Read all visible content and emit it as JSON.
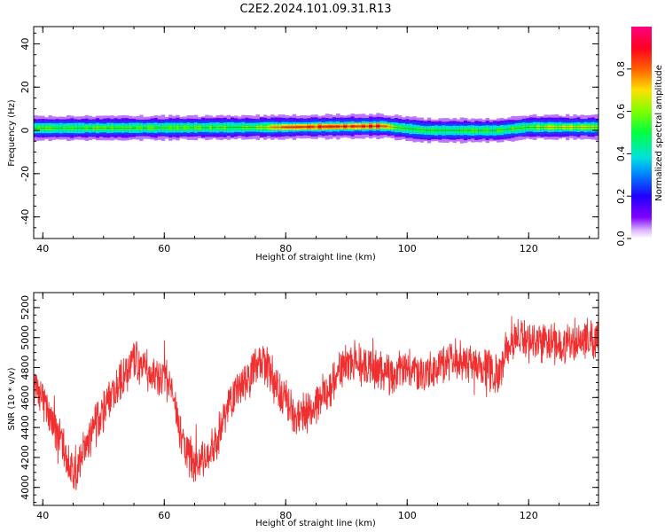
{
  "title": "C2E2.2024.101.09.31.R13",
  "chart_data": [
    {
      "type": "heatmap",
      "xlabel": "Height of straight line (km)",
      "ylabel": "Frequency (Hz)",
      "xlim": [
        38.5,
        131.5
      ],
      "ylim": [
        -50,
        48
      ],
      "x_ticks": [
        40,
        60,
        80,
        100,
        120
      ],
      "y_ticks": [
        -40,
        -20,
        0,
        20,
        40
      ],
      "colorbar": {
        "label": "Normalized spectral amplitude",
        "range": [
          0,
          1
        ],
        "ticks": [
          0.0,
          0.2,
          0.4,
          0.6,
          0.8
        ],
        "colormap": "rainbow (purple-blue-cyan-green-yellow-red-pink)"
      },
      "band_center_hz": [
        {
          "x": 38.5,
          "f": 1.0
        },
        {
          "x": 60,
          "f": 1.2
        },
        {
          "x": 80,
          "f": 1.5
        },
        {
          "x": 96,
          "f": 2.0
        },
        {
          "x": 103,
          "f": 0.0
        },
        {
          "x": 115,
          "f": 0.0
        },
        {
          "x": 120,
          "f": 1.5
        },
        {
          "x": 131.5,
          "f": 1.5
        }
      ],
      "band_peak_amplitude": [
        {
          "x": 38.5,
          "a": 0.55
        },
        {
          "x": 75,
          "a": 0.55
        },
        {
          "x": 80,
          "a": 0.8
        },
        {
          "x": 95,
          "a": 0.85
        },
        {
          "x": 100,
          "a": 0.5
        },
        {
          "x": 118,
          "a": 0.55
        },
        {
          "x": 125,
          "a": 0.65
        },
        {
          "x": 131.5,
          "a": 0.6
        }
      ]
    },
    {
      "type": "line",
      "xlabel": "Height of straight line (km)",
      "ylabel": "SNR (10 * v/v)",
      "xlim": [
        38.5,
        131.5
      ],
      "ylim": [
        3880,
        5300
      ],
      "x_ticks": [
        40,
        60,
        80,
        100,
        120
      ],
      "y_ticks": [
        4000,
        4200,
        4400,
        4600,
        4800,
        5000,
        5200
      ],
      "series": [
        {
          "color": "#f03030",
          "envelope": [
            {
              "x": 38.5,
              "y": 4700
            },
            {
              "x": 41,
              "y": 4500
            },
            {
              "x": 45,
              "y": 4080
            },
            {
              "x": 48,
              "y": 4350
            },
            {
              "x": 51,
              "y": 4600
            },
            {
              "x": 55,
              "y": 4850
            },
            {
              "x": 58,
              "y": 4750
            },
            {
              "x": 61,
              "y": 4700
            },
            {
              "x": 63,
              "y": 4300
            },
            {
              "x": 65,
              "y": 4150
            },
            {
              "x": 68,
              "y": 4250
            },
            {
              "x": 71,
              "y": 4600
            },
            {
              "x": 76,
              "y": 4850
            },
            {
              "x": 79,
              "y": 4650
            },
            {
              "x": 82,
              "y": 4450
            },
            {
              "x": 86,
              "y": 4600
            },
            {
              "x": 90,
              "y": 4850
            },
            {
              "x": 93,
              "y": 4800
            },
            {
              "x": 97,
              "y": 4750
            },
            {
              "x": 100,
              "y": 4800
            },
            {
              "x": 103,
              "y": 4750
            },
            {
              "x": 108,
              "y": 4850
            },
            {
              "x": 112,
              "y": 4820
            },
            {
              "x": 115,
              "y": 4750
            },
            {
              "x": 117,
              "y": 5000
            },
            {
              "x": 122,
              "y": 4980
            },
            {
              "x": 126,
              "y": 4950
            },
            {
              "x": 131.5,
              "y": 5000
            }
          ]
        }
      ]
    }
  ]
}
